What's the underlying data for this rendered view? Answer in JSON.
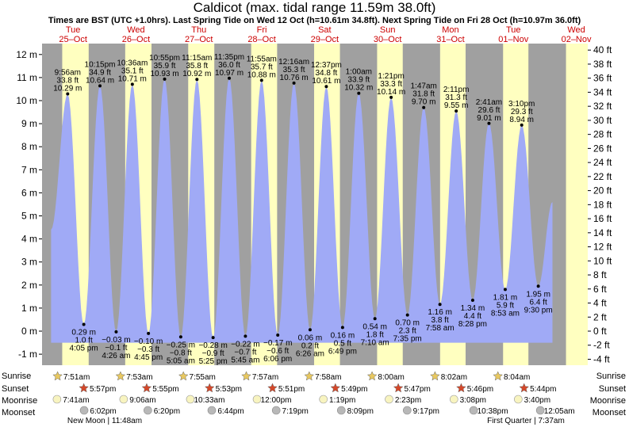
{
  "chart_data": {
    "type": "area",
    "title": "Caldicot (max. tidal range 11.59m 38.0ft)",
    "subtitle": "Times are BST (UTC +1.0hrs). Last Spring Tide on Wed 12 Oct (h=10.61m 34.8ft). Next Spring Tide on Fri 28 Oct (h=10.97m 36.0ft)",
    "y_left": {
      "unit": "m",
      "range": [
        -1.5,
        12.6
      ],
      "ticks": [
        "12 m",
        "11 m",
        "10 m",
        "9 m",
        "8 m",
        "7 m",
        "6 m",
        "5 m",
        "4 m",
        "3 m",
        "2 m",
        "1 m",
        "0 m",
        "-1 m"
      ]
    },
    "y_right": {
      "unit": "ft",
      "range": [
        -4.9,
        41.3
      ],
      "ticks": [
        "40 ft",
        "38 ft",
        "36 ft",
        "34 ft",
        "32 ft",
        "30 ft",
        "28 ft",
        "26 ft",
        "24 ft",
        "22 ft",
        "20 ft",
        "18 ft",
        "16 ft",
        "14 ft",
        "12 ft",
        "10 ft",
        "8 ft",
        "6 ft",
        "4 ft",
        "2 ft",
        "0 ft",
        "-2 ft",
        "-4 ft"
      ]
    },
    "days": [
      {
        "dow": "Tue",
        "date": "25–Oct"
      },
      {
        "dow": "Wed",
        "date": "26–Oct"
      },
      {
        "dow": "Thu",
        "date": "27–Oct"
      },
      {
        "dow": "Fri",
        "date": "28–Oct"
      },
      {
        "dow": "Sat",
        "date": "29–Oct"
      },
      {
        "dow": "Sun",
        "date": "30–Oct"
      },
      {
        "dow": "Mon",
        "date": "31–Oct"
      },
      {
        "dow": "Tue",
        "date": "01–Nov"
      },
      {
        "dow": "Wed",
        "date": "02–Nov"
      }
    ],
    "high_tides": [
      {
        "time": "9:56 am",
        "ft": "33.8 ft",
        "m": "10.29 m",
        "value": 10.29,
        "day": 0,
        "hour": 9.93
      },
      {
        "time": "10:15 pm",
        "ft": "34.9 ft",
        "m": "10.64 m",
        "value": 10.64,
        "day": 0,
        "hour": 22.25
      },
      {
        "time": "10:36 am",
        "ft": "35.1 ft",
        "m": "10.71 m",
        "value": 10.71,
        "day": 1,
        "hour": 10.6
      },
      {
        "time": "10:55 pm",
        "ft": "35.9 ft",
        "m": "10.93 m",
        "value": 10.93,
        "day": 1,
        "hour": 22.92
      },
      {
        "time": "11:15 am",
        "ft": "35.8 ft",
        "m": "10.92 m",
        "value": 10.92,
        "day": 2,
        "hour": 11.25
      },
      {
        "time": "11:35 pm",
        "ft": "36.0 ft",
        "m": "10.97 m",
        "value": 10.97,
        "day": 2,
        "hour": 23.58
      },
      {
        "time": "11:55 am",
        "ft": "35.7 ft",
        "m": "10.88 m",
        "value": 10.88,
        "day": 3,
        "hour": 11.92
      },
      {
        "time": "12:16 am",
        "ft": "35.3 ft",
        "m": "10.76 m",
        "value": 10.76,
        "day": 4,
        "hour": 0.27
      },
      {
        "time": "12:37 pm",
        "ft": "34.8 ft",
        "m": "10.61 m",
        "value": 10.61,
        "day": 4,
        "hour": 12.62
      },
      {
        "time": "1:00 am",
        "ft": "33.9 ft",
        "m": "10.32 m",
        "value": 10.32,
        "day": 5,
        "hour": 1.0
      },
      {
        "time": "1:21 pm",
        "ft": "33.3 ft",
        "m": "10.14 m",
        "value": 10.14,
        "day": 5,
        "hour": 13.35
      },
      {
        "time": "1:47 am",
        "ft": "31.8 ft",
        "m": "9.70 m",
        "value": 9.7,
        "day": 6,
        "hour": 1.78
      },
      {
        "time": "2:11 pm",
        "ft": "31.3 ft",
        "m": "9.55 m",
        "value": 9.55,
        "day": 6,
        "hour": 14.18
      },
      {
        "time": "2:41 am",
        "ft": "29.6 ft",
        "m": "9.01 m",
        "value": 9.01,
        "day": 7,
        "hour": 2.68
      },
      {
        "time": "3:10 pm",
        "ft": "29.3 ft",
        "m": "8.94 m",
        "value": 8.94,
        "day": 7,
        "hour": 15.17
      }
    ],
    "low_tides": [
      {
        "m": "0.29 m",
        "ft": "1.0 ft",
        "time": "4:05 pm",
        "value": 0.29,
        "day": 0,
        "hour": 16.08
      },
      {
        "m": "−0.03 m",
        "ft": "−0.1 ft",
        "time": "4:26 am",
        "value": -0.03,
        "day": 1,
        "hour": 4.43
      },
      {
        "m": "−0.10 m",
        "ft": "−0.3 ft",
        "time": "4:45 pm",
        "value": -0.1,
        "day": 1,
        "hour": 16.75
      },
      {
        "m": "−0.25 m",
        "ft": "−0.8 ft",
        "time": "5:05 am",
        "value": -0.25,
        "day": 2,
        "hour": 5.08
      },
      {
        "m": "−0.28 m",
        "ft": "−0.9 ft",
        "time": "5:25 pm",
        "value": -0.28,
        "day": 2,
        "hour": 17.42
      },
      {
        "m": "−0.22 m",
        "ft": "−0.7 ft",
        "time": "5:45 am",
        "value": -0.22,
        "day": 3,
        "hour": 5.75
      },
      {
        "m": "−0.17 m",
        "ft": "−0.6 ft",
        "time": "6:06 pm",
        "value": -0.17,
        "day": 3,
        "hour": 18.1
      },
      {
        "m": "0.06 m",
        "ft": "0.2 ft",
        "time": "6:26 am",
        "value": 0.06,
        "day": 4,
        "hour": 6.43
      },
      {
        "m": "0.16 m",
        "ft": "0.5 ft",
        "time": "6:49 pm",
        "value": 0.16,
        "day": 4,
        "hour": 18.82
      },
      {
        "m": "0.54 m",
        "ft": "1.8 ft",
        "time": "7:10 am",
        "value": 0.54,
        "day": 5,
        "hour": 7.17
      },
      {
        "m": "0.70 m",
        "ft": "2.3 ft",
        "time": "7:35 pm",
        "value": 0.7,
        "day": 5,
        "hour": 19.58
      },
      {
        "m": "1.16 m",
        "ft": "3.8 ft",
        "time": "7:58 am",
        "value": 1.16,
        "day": 6,
        "hour": 7.97
      },
      {
        "m": "1.34 m",
        "ft": "4.4 ft",
        "time": "8:28 pm",
        "value": 1.34,
        "day": 6,
        "hour": 20.47
      },
      {
        "m": "1.81 m",
        "ft": "5.9 ft",
        "time": "8:53 am",
        "value": 1.81,
        "day": 7,
        "hour": 8.88
      },
      {
        "m": "1.95 m",
        "ft": "6.4 ft",
        "time": "9:30 pm",
        "value": 1.95,
        "day": 7,
        "hour": 21.5
      }
    ],
    "sunrise": [
      "7:51am",
      "7:53am",
      "7:55am",
      "7:57am",
      "7:58am",
      "8:00am",
      "8:02am",
      "8:04am"
    ],
    "sunset": [
      "5:57pm",
      "5:55pm",
      "5:53pm",
      "5:51pm",
      "5:49pm",
      "5:47pm",
      "5:46pm",
      "5:44pm"
    ],
    "moonrise": [
      "7:41am",
      "9:06am",
      "10:33am",
      "12:00pm",
      "1:19pm",
      "2:23pm",
      "3:08pm",
      "3:40pm"
    ],
    "moonset": [
      "6:02pm",
      "6:20pm",
      "6:44pm",
      "7:19pm",
      "8:09pm",
      "9:17pm",
      "10:38pm",
      "12:05am"
    ],
    "moon_phases": [
      {
        "label": "New Moon | 11:48am",
        "day": 0
      },
      {
        "label": "First Quarter | 7:37am",
        "day": 7
      }
    ],
    "row_labels": {
      "sunrise": "Sunrise",
      "sunset": "Sunset",
      "moonrise": "Moonrise",
      "moonset": "Moonset"
    },
    "colors": {
      "night": "#a0a0a0",
      "day": "#ffffc0",
      "water": "#a0aaf6",
      "sun": "#d4482a",
      "moon": "#f8f4c0"
    }
  }
}
